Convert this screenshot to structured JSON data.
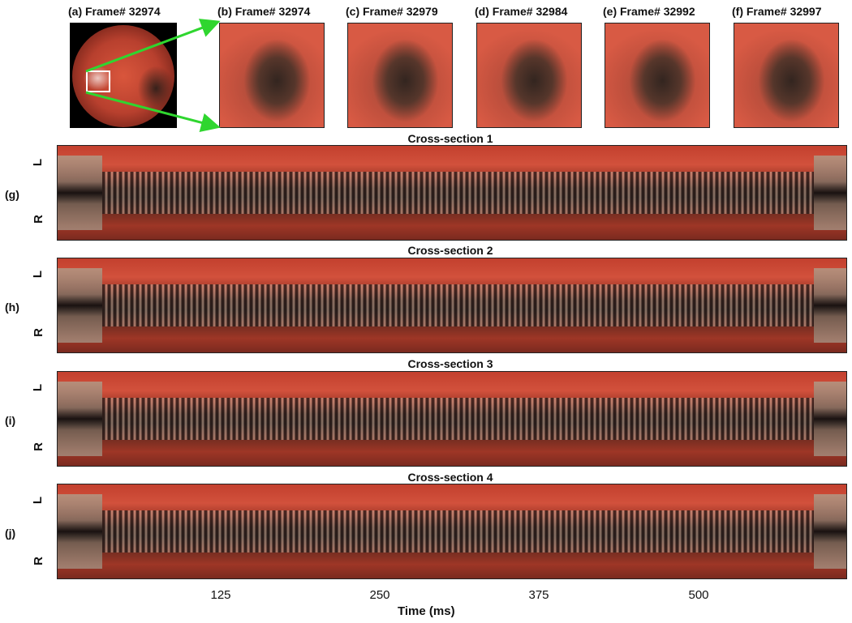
{
  "frames": [
    {
      "title": "(a) Frame# 32974"
    },
    {
      "title": "(b) Frame# 32974"
    },
    {
      "title": "(c) Frame# 32979"
    },
    {
      "title": "(d) Frame# 32984"
    },
    {
      "title": "(e) Frame# 32992"
    },
    {
      "title": "(f) Frame# 32997"
    }
  ],
  "panels": [
    {
      "title": "Cross-section  1",
      "label": "(g)",
      "top": "L",
      "bottom": "R"
    },
    {
      "title": "Cross-section  2",
      "label": "(h)",
      "top": "L",
      "bottom": "R"
    },
    {
      "title": "Cross-section  3",
      "label": "(i)",
      "top": "L",
      "bottom": "R"
    },
    {
      "title": "Cross-section  4",
      "label": "(j)",
      "top": "L",
      "bottom": "R"
    }
  ],
  "x_axis": {
    "ticks": [
      "125",
      "250",
      "375",
      "500"
    ],
    "label": "Time (ms)"
  },
  "colors": {
    "arrow": "#2fd62f",
    "roi_box": "#ffffff"
  }
}
